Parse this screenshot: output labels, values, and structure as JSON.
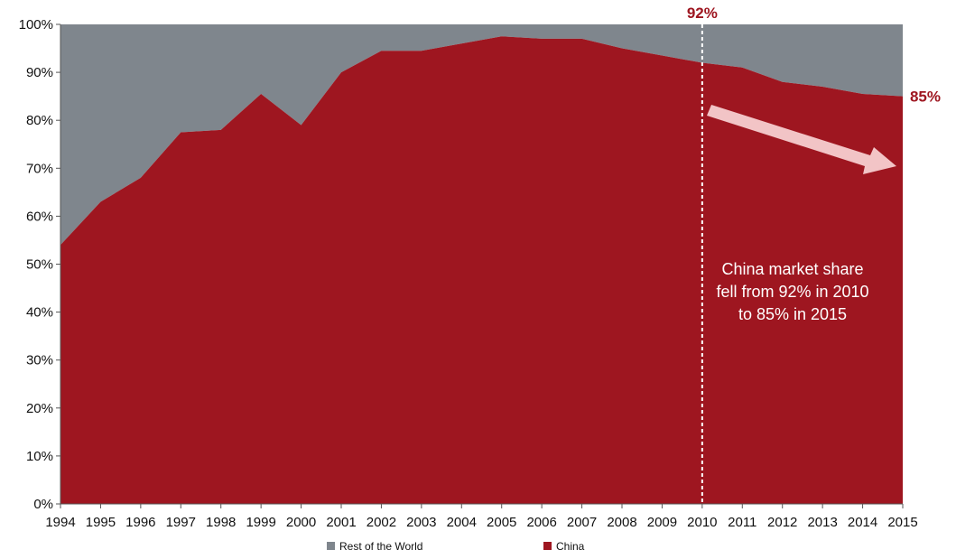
{
  "chart_data": {
    "type": "area",
    "stacked": true,
    "percent_stacked": true,
    "x": [
      "1994",
      "1995",
      "1996",
      "1997",
      "1998",
      "1999",
      "2000",
      "2001",
      "2002",
      "2003",
      "2004",
      "2005",
      "2006",
      "2007",
      "2008",
      "2009",
      "2010",
      "2011",
      "2012",
      "2013",
      "2014",
      "2015"
    ],
    "series": [
      {
        "name": "China",
        "color": "#9e1620",
        "values": [
          54,
          63,
          68,
          77.5,
          78,
          85.5,
          79,
          90,
          94.5,
          94.5,
          96,
          97.5,
          97,
          97,
          95,
          93.5,
          92,
          91,
          88,
          87,
          85.5,
          85
        ]
      },
      {
        "name": "Rest of the World",
        "color": "#7f868d",
        "values": [
          46,
          37,
          32,
          22.5,
          22,
          14.5,
          21,
          10,
          5.5,
          5.5,
          4,
          2.5,
          3,
          3,
          5,
          6.5,
          8,
          9,
          12,
          13,
          14.5,
          15
        ]
      }
    ],
    "ylim": [
      0,
      100
    ],
    "y_ticks": [
      "0%",
      "10%",
      "20%",
      "30%",
      "40%",
      "50%",
      "60%",
      "70%",
      "80%",
      "90%",
      "100%"
    ],
    "legend": {
      "position": "bottom",
      "items": [
        "Rest of the World",
        "China"
      ]
    },
    "grid": false,
    "annotations": {
      "marker_year": "2010",
      "label_2010": "92%",
      "label_2015": "85%",
      "callout_color": "#9e1620",
      "arrow_color": "#f2c4c6",
      "text_lines": [
        "China market share",
        "fell from 92% in 2010",
        "to 85% in 2015"
      ]
    }
  }
}
